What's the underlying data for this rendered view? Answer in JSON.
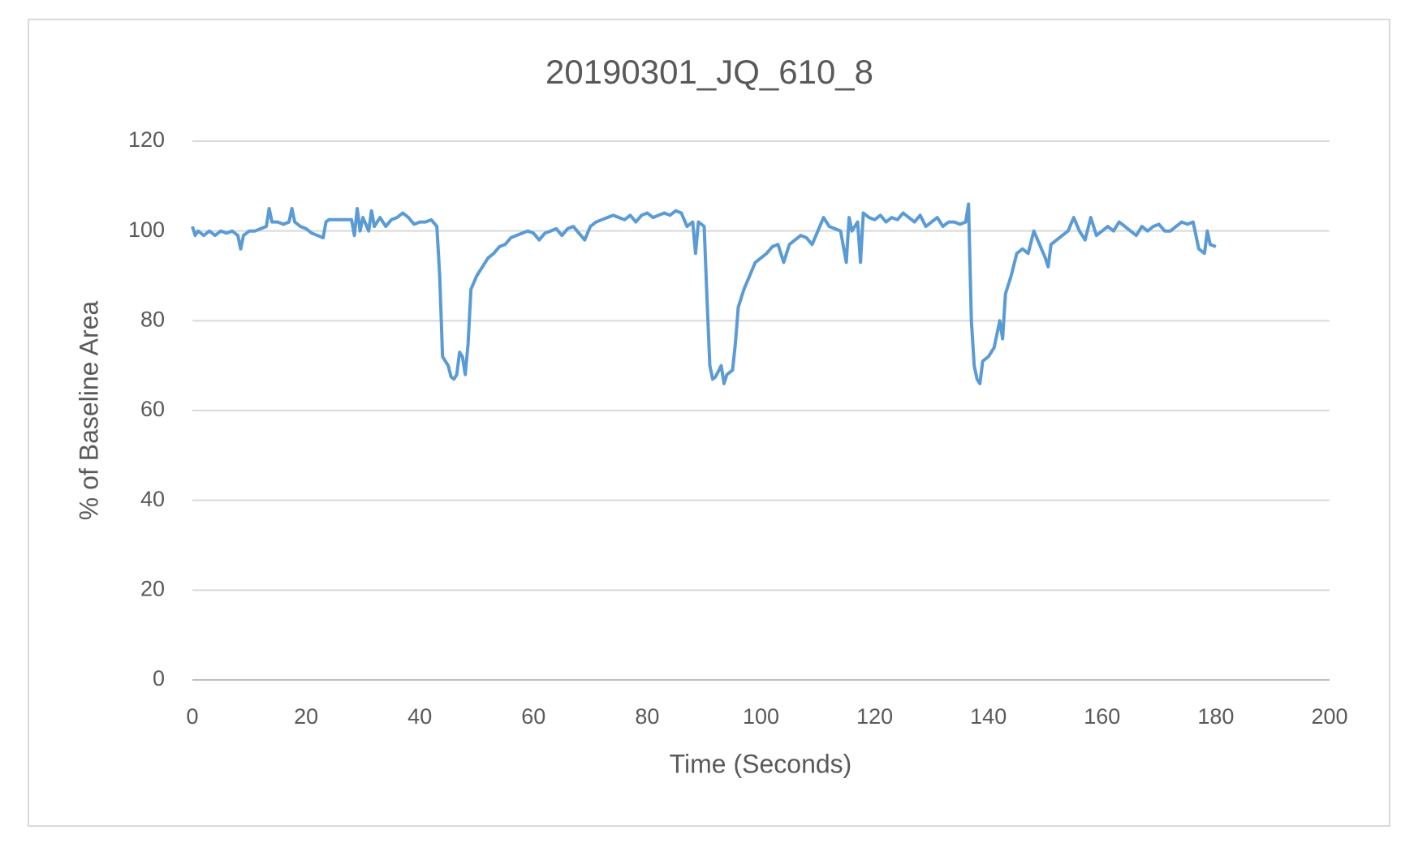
{
  "chart_data": {
    "type": "line",
    "title": "20190301_JQ_610_8",
    "x_label": "Time (Seconds)",
    "y_label": "% of Baseline Area",
    "xlim": [
      0,
      200
    ],
    "xticks": [
      0,
      20,
      40,
      60,
      80,
      100,
      120,
      140,
      160,
      180,
      200
    ],
    "ylim": [
      0,
      120
    ],
    "yticks": [
      0,
      20,
      40,
      60,
      80,
      100,
      120
    ],
    "grid": true,
    "x": [
      0,
      0.5,
      1,
      2,
      3,
      4,
      5,
      6,
      7,
      8,
      8.5,
      9,
      10,
      11,
      12,
      13,
      13.5,
      14,
      15,
      16,
      17,
      17.5,
      18,
      19,
      20,
      21,
      22,
      23,
      23.5,
      24,
      26,
      28,
      28.5,
      29,
      29.5,
      30,
      31,
      31.5,
      32,
      33,
      34,
      35,
      36,
      37,
      38,
      39,
      40,
      41,
      42,
      43,
      43.5,
      44,
      45,
      45.5,
      46,
      46.5,
      47,
      47.5,
      48,
      48.5,
      49,
      50,
      51,
      52,
      53,
      54,
      55,
      56,
      57,
      58,
      59,
      60,
      61,
      62,
      63,
      64,
      65,
      66,
      67,
      68,
      69,
      70,
      71,
      72,
      73,
      74,
      75,
      76,
      77,
      78,
      79,
      80,
      81,
      82,
      83,
      84,
      85,
      86,
      87,
      88,
      88.5,
      89,
      90,
      90.5,
      91,
      91.5,
      92,
      93,
      93.5,
      94,
      95,
      95.5,
      96,
      97,
      98,
      99,
      100,
      101,
      102,
      103,
      104,
      105,
      106,
      107,
      108,
      109,
      110,
      111,
      112,
      113,
      114,
      115,
      115.5,
      116,
      117,
      117.5,
      118,
      119,
      120,
      121,
      122,
      123,
      124,
      125,
      126,
      127,
      128,
      129,
      130,
      131,
      132,
      133,
      134,
      135,
      136,
      136.5,
      137,
      137.5,
      138,
      138.5,
      139,
      140,
      141,
      142,
      142.5,
      143,
      144,
      145,
      146,
      147,
      148,
      149,
      150,
      150.5,
      151,
      152,
      153,
      154,
      155,
      156,
      157,
      158,
      159,
      160,
      161,
      162,
      163,
      164,
      165,
      166,
      167,
      168,
      169,
      170,
      171,
      172,
      173,
      174,
      175,
      176,
      177,
      178,
      178.5,
      179,
      180
    ],
    "series": [
      {
        "name": "% of Baseline Area",
        "color": "#5b9bd5",
        "values": [
          101,
          99,
          100,
          99,
          100,
          99,
          100,
          99.5,
          100,
          99,
          96,
          99,
          100,
          100,
          100.5,
          101,
          105,
          102,
          102,
          101.5,
          102,
          105,
          102,
          101,
          100.5,
          99.5,
          99,
          98.5,
          102,
          102.5,
          102.5,
          102.5,
          99,
          105,
          100,
          103,
          100,
          104.5,
          101,
          103,
          101,
          102.5,
          103,
          104,
          103,
          101.5,
          102,
          102,
          102.5,
          101,
          90,
          72,
          70,
          67.5,
          67,
          68,
          73,
          72,
          68,
          75,
          87,
          90,
          92,
          94,
          95,
          96.5,
          97,
          98.5,
          99,
          99.5,
          100,
          99.5,
          98,
          99.5,
          100,
          100.5,
          99,
          100.5,
          101,
          99.5,
          98,
          101,
          102,
          102.5,
          103,
          103.5,
          103,
          102.5,
          103.5,
          102,
          103.5,
          104,
          103,
          103.5,
          104,
          103.5,
          104.5,
          104,
          101,
          102,
          95,
          102,
          101,
          85,
          70,
          67,
          67.5,
          70,
          66,
          68,
          69,
          75,
          83,
          87,
          90,
          93,
          94,
          95,
          96.5,
          97,
          93,
          97,
          98,
          99,
          98.5,
          97,
          100,
          103,
          101,
          100.5,
          100,
          93,
          103,
          100,
          102,
          93,
          104,
          103,
          102.5,
          103.5,
          102,
          103,
          102.5,
          104,
          103,
          102,
          103.5,
          101,
          102,
          103,
          101,
          102,
          102,
          101.5,
          102,
          106,
          80,
          70,
          67,
          66,
          71,
          72,
          74,
          80,
          76,
          86,
          90,
          95,
          96,
          95,
          100,
          97,
          94,
          92,
          97,
          98,
          99,
          100,
          103,
          100,
          98,
          103,
          99,
          100,
          101,
          100,
          102,
          101,
          100,
          99,
          101,
          100,
          101,
          101.5,
          100,
          100,
          101,
          102,
          101.5,
          102,
          96,
          95,
          100,
          97,
          96.5
        ]
      }
    ]
  }
}
